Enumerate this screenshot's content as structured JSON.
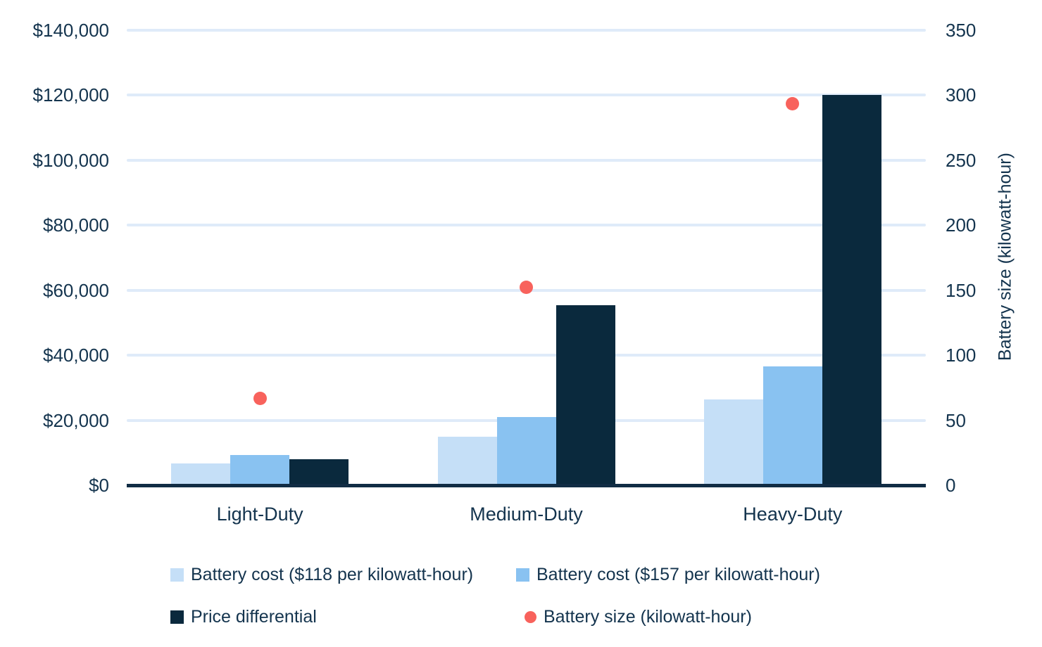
{
  "chart_data": {
    "type": "bar",
    "subtype": "grouped-bar-with-scatter-overlay-dual-axis",
    "categories": [
      "Light-Duty",
      "Medium-Duty",
      "Heavy-Duty"
    ],
    "series": [
      {
        "name": "Battery cost ($118 per kilowatt-hour)",
        "type": "bar",
        "axis": "left",
        "color": "#C5DFF7",
        "values": [
          6600,
          15000,
          26300
        ]
      },
      {
        "name": "Battery cost ($157 per kilowatt-hour)",
        "type": "bar",
        "axis": "left",
        "color": "#89C2F1",
        "values": [
          9300,
          20900,
          36500
        ]
      },
      {
        "name": "Price differential",
        "type": "bar",
        "axis": "left",
        "color": "#0A293D",
        "values": [
          8100,
          55400,
          120000
        ]
      },
      {
        "name": "Battery size (kilowatt-hour)",
        "type": "scatter",
        "axis": "right",
        "color": "#F8625C",
        "values": [
          67,
          152,
          293
        ]
      }
    ],
    "left_axis": {
      "min": 0,
      "max": 140000,
      "tick_labels": [
        "$0",
        "$20,000",
        "$40,000",
        "$60,000",
        "$80,000",
        "$100,000",
        "$120,000",
        "$140,000"
      ]
    },
    "right_axis": {
      "min": 0,
      "max": 350,
      "tick_labels": [
        "0",
        "50",
        "100",
        "150",
        "200",
        "250",
        "300",
        "350"
      ],
      "label": "Battery size (kilowatt-hour)"
    },
    "grid": true,
    "legend_position": "bottom",
    "colors": {
      "gridline": "#DFEBF9",
      "baseline": "#112C44",
      "text": "#14344E",
      "background": "#FFFFFF"
    }
  }
}
